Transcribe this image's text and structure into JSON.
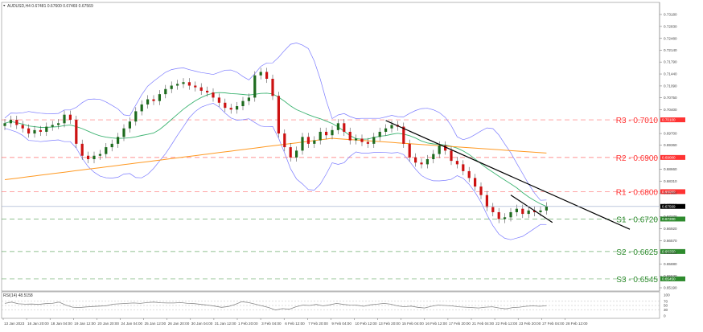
{
  "header": {
    "symbol_label": "AUDUSD,H4 0.67481 0.67600 0.67469 0.67569"
  },
  "price_axis": {
    "ticks": [
      "0.73180",
      "0.72830",
      "0.72480",
      "0.72140",
      "0.71790",
      "0.71440",
      "0.71090",
      "0.70750",
      "0.70400",
      "0.69700",
      "0.69360",
      "0.68660",
      "0.68310",
      "0.67960",
      "0.67610",
      "0.67270",
      "0.66920",
      "0.66570",
      "0.66220",
      "0.65880",
      "0.65530",
      "0.65190"
    ],
    "current_price_tag": "0.67569"
  },
  "levels": [
    {
      "id": "R3",
      "label": "R3 - 0.7010",
      "value": 0.701,
      "color": "#ff3333",
      "tag": "0.70100"
    },
    {
      "id": "R2",
      "label": "R2 - 0.6900",
      "value": 0.69,
      "color": "#ff3333",
      "tag": "0.69000"
    },
    {
      "id": "R1",
      "label": "R1 - 0.6800",
      "value": 0.68,
      "color": "#ff3333",
      "tag": "0.68000"
    },
    {
      "id": "S1",
      "label": "S1 - 0.6720",
      "value": 0.672,
      "color": "#2e8b2e",
      "tag": "0.67200"
    },
    {
      "id": "S2",
      "label": "S2 - 0.6625",
      "value": 0.6625,
      "color": "#2e8b2e",
      "tag": "0.66250"
    },
    {
      "id": "S3",
      "label": "S3 - 0.6545",
      "value": 0.6545,
      "color": "#2e8b2e",
      "tag": "0.65450"
    }
  ],
  "rsi": {
    "label": "RSI(14) 48.5158",
    "axis": [
      "100",
      "70",
      "50",
      "30",
      "0"
    ]
  },
  "time_axis": [
    "13 Jan 2023",
    "16 Jan 20:00",
    "18 Jan 04:00",
    "19 Jan 12:00",
    "20 Jan 20:00",
    "24 Jan 04:00",
    "25 Jan 12:00",
    "26 Jan 20:00",
    "30 Jan 04:00",
    "31 Jan 12:00",
    "1 Feb 20:00",
    "3 Feb 04:00",
    "6 Feb 12:00",
    "7 Feb 20:00",
    "9 Feb 04:00",
    "10 Feb 12:00",
    "13 Feb 20:00",
    "15 Feb 04:00",
    "16 Feb 12:00",
    "17 Feb 20:00",
    "21 Feb 04:00",
    "22 Feb 12:00",
    "23 Feb 20:00",
    "27 Feb 04:00",
    "28 Feb 12:00"
  ],
  "colors": {
    "bull": "#1e6b1e",
    "bear": "#cc1111",
    "bollinger": "#7b7bff",
    "ma50": "#3cb371",
    "ma200": "#ff9922",
    "trendline": "#000000"
  },
  "chart_data": {
    "type": "line",
    "title": "AUDUSD,H4",
    "instrument": "AUDUSD",
    "timeframe": "H4",
    "ohlc_last": {
      "open": 0.67481,
      "high": 0.676,
      "low": 0.67469,
      "close": 0.67569
    },
    "xlabel": "",
    "ylabel": "",
    "ylim": [
      0.6519,
      0.7318
    ],
    "close_series": [
      0.7,
      0.701,
      0.6995,
      0.6985,
      0.697,
      0.698,
      0.6975,
      0.699,
      0.6995,
      0.7,
      0.7025,
      0.701,
      0.694,
      0.6905,
      0.6895,
      0.6905,
      0.691,
      0.693,
      0.694,
      0.696,
      0.6985,
      0.7005,
      0.7035,
      0.7055,
      0.707,
      0.7065,
      0.7085,
      0.71,
      0.711,
      0.7115,
      0.712,
      0.711,
      0.7105,
      0.7095,
      0.709,
      0.7075,
      0.706,
      0.7045,
      0.704,
      0.705,
      0.7065,
      0.7075,
      0.714,
      0.715,
      0.713,
      0.708,
      0.697,
      0.693,
      0.69,
      0.692,
      0.696,
      0.694,
      0.695,
      0.6975,
      0.6965,
      0.698,
      0.7,
      0.6975,
      0.695,
      0.6955,
      0.6945,
      0.694,
      0.696,
      0.6975,
      0.6985,
      0.6995,
      0.699,
      0.694,
      0.69,
      0.6885,
      0.688,
      0.6895,
      0.691,
      0.6935,
      0.692,
      0.689,
      0.688,
      0.686,
      0.684,
      0.6815,
      0.679,
      0.6755,
      0.674,
      0.672,
      0.6725,
      0.674,
      0.675,
      0.6735,
      0.6745,
      0.674,
      0.6745,
      0.6757
    ],
    "series": [
      {
        "name": "Bollinger Upper",
        "color": "#7b7bff"
      },
      {
        "name": "Bollinger Middle",
        "color": "#7b7bff"
      },
      {
        "name": "Bollinger Lower",
        "color": "#7b7bff"
      },
      {
        "name": "MA 50",
        "color": "#3cb371"
      },
      {
        "name": "MA 200",
        "color": "#ff9922"
      }
    ],
    "trendlines": [
      {
        "from": {
          "x_idx": 64,
          "price": 0.7008
        },
        "to": {
          "x_idx": 105,
          "price": 0.669
        }
      },
      {
        "from": {
          "x_idx": 85,
          "price": 0.679
        },
        "to": {
          "x_idx": 92,
          "price": 0.671
        }
      }
    ],
    "rsi_series": [
      60,
      66,
      58,
      56,
      57,
      55,
      59,
      60,
      66,
      52,
      42,
      40,
      43,
      45,
      47,
      49,
      56,
      58,
      60,
      62,
      60,
      64,
      66,
      63,
      62,
      62,
      64,
      60,
      59,
      55,
      52,
      47,
      41,
      45,
      55,
      68,
      64,
      56,
      48,
      40,
      28,
      35,
      32,
      44,
      52,
      50,
      55,
      48,
      53,
      60,
      55,
      52,
      51,
      46,
      53,
      56,
      60,
      56,
      48,
      44,
      47,
      41,
      38,
      46,
      52,
      50,
      48,
      44,
      42,
      40,
      38,
      42,
      44,
      38,
      34,
      40,
      42,
      46,
      48,
      46,
      48.5
    ]
  }
}
